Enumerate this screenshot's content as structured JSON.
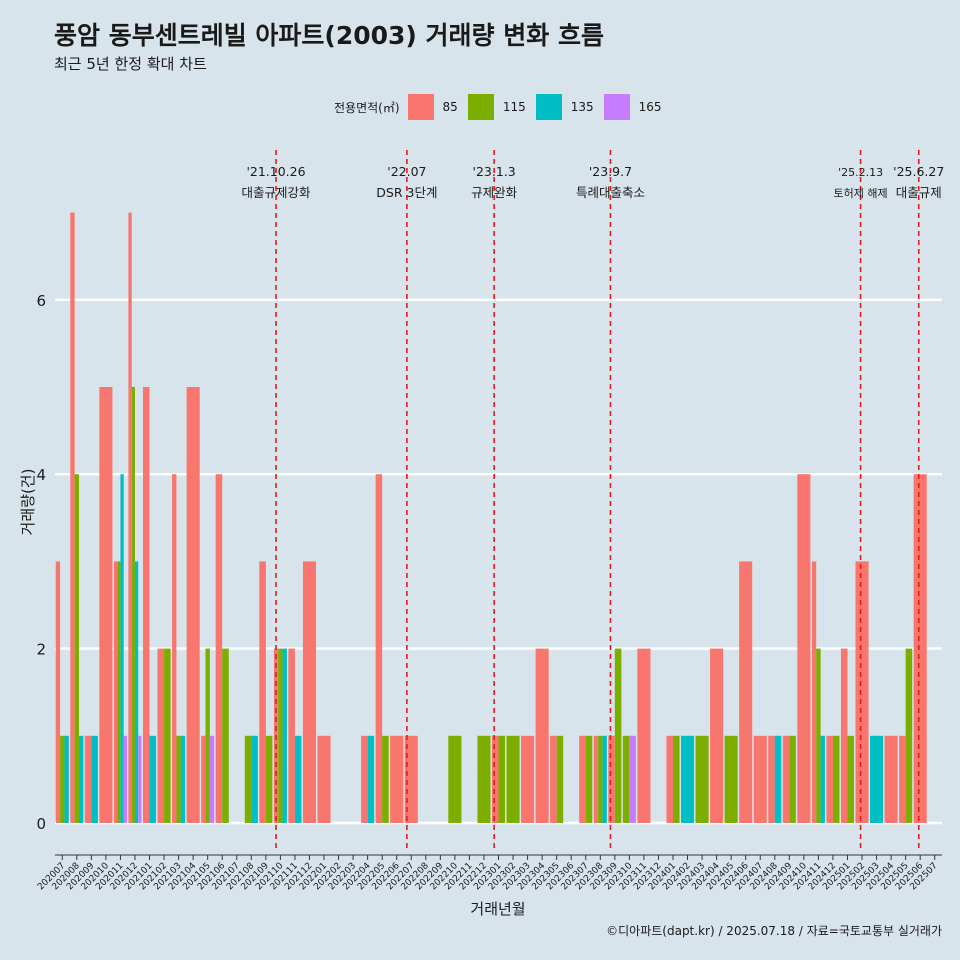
{
  "title": "풍암 동부센트레빌 아파트(2003) 거래량 변화 흐름",
  "subtitle": "최근 5년 한정 확대 차트",
  "caption": "©디아파트(dapt.kr) / 2025.07.18 / 자료=국토교통부 실거래가",
  "colors": {
    "85": "#f8766d",
    "115": "#7cae00",
    "135": "#00bfc4",
    "165": "#c77cff",
    "background": "#d8e4eb",
    "event_line": "#e8191b"
  },
  "chart_data": {
    "type": "bar",
    "xlabel": "거래년월",
    "ylabel": "거래량(건)",
    "ylim": [
      -0.3,
      7.3
    ],
    "yticks": [
      0,
      2,
      4,
      6
    ],
    "legend": {
      "title": "전용면적(㎡)",
      "position": "top"
    },
    "categories": [
      "202007",
      "202008",
      "202009",
      "202010",
      "202011",
      "202012",
      "202101",
      "202102",
      "202103",
      "202104",
      "202105",
      "202106",
      "202107",
      "202108",
      "202109",
      "202110",
      "202111",
      "202112",
      "202201",
      "202202",
      "202203",
      "202204",
      "202205",
      "202206",
      "202207",
      "202208",
      "202209",
      "202210",
      "202211",
      "202212",
      "202301",
      "202302",
      "202303",
      "202304",
      "202305",
      "202306",
      "202307",
      "202308",
      "202309",
      "202310",
      "202311",
      "202312",
      "202401",
      "202402",
      "202403",
      "202404",
      "202405",
      "202406",
      "202407",
      "202408",
      "202409",
      "202410",
      "202411",
      "202412",
      "202501",
      "202502",
      "202503",
      "202504",
      "202505",
      "202506",
      "202507"
    ],
    "series": [
      {
        "name": "85",
        "values": [
          3,
          7,
          1,
          5,
          3,
          7,
          5,
          2,
          4,
          5,
          1,
          4,
          0,
          0,
          3,
          2,
          2,
          3,
          1,
          0,
          0,
          1,
          4,
          1,
          1,
          0,
          0,
          0,
          0,
          0,
          1,
          0,
          1,
          2,
          1,
          0,
          1,
          1,
          1,
          0,
          2,
          0,
          1,
          0,
          0,
          2,
          0,
          3,
          1,
          1,
          1,
          4,
          3,
          1,
          2,
          3,
          0,
          1,
          1,
          4,
          0
        ]
      },
      {
        "name": "115",
        "values": [
          1,
          4,
          0,
          0,
          3,
          5,
          0,
          2,
          1,
          0,
          2,
          2,
          0,
          1,
          1,
          2,
          0,
          0,
          0,
          0,
          0,
          0,
          1,
          0,
          0,
          0,
          0,
          1,
          0,
          1,
          1,
          1,
          0,
          0,
          1,
          0,
          1,
          1,
          2,
          1,
          0,
          0,
          1,
          0,
          1,
          0,
          1,
          0,
          0,
          0,
          1,
          0,
          2,
          1,
          1,
          0,
          0,
          0,
          2,
          0,
          0
        ]
      },
      {
        "name": "135",
        "values": [
          1,
          1,
          1,
          0,
          4,
          3,
          1,
          0,
          1,
          0,
          0,
          0,
          0,
          1,
          0,
          2,
          1,
          0,
          0,
          0,
          0,
          1,
          0,
          0,
          0,
          0,
          0,
          0,
          0,
          0,
          0,
          0,
          0,
          0,
          0,
          0,
          0,
          1,
          0,
          0,
          0,
          0,
          0,
          1,
          0,
          0,
          0,
          0,
          0,
          1,
          0,
          0,
          1,
          0,
          0,
          0,
          1,
          0,
          0,
          0,
          0
        ]
      },
      {
        "name": "165",
        "values": [
          0,
          0,
          0,
          0,
          1,
          1,
          0,
          0,
          0,
          0,
          1,
          0,
          0,
          0,
          0,
          0,
          0,
          0,
          0,
          0,
          0,
          0,
          0,
          0,
          0,
          0,
          0,
          0,
          0,
          0,
          0,
          0,
          0,
          0,
          0,
          0,
          0,
          0,
          0,
          1,
          0,
          0,
          0,
          0,
          0,
          0,
          0,
          0,
          0,
          0,
          0,
          0,
          0,
          0,
          0,
          0,
          0,
          0,
          0,
          0,
          0
        ]
      }
    ],
    "events": [
      {
        "position": 15.2,
        "date": "'21.10.26",
        "label": "대출규제강화"
      },
      {
        "position": 24.2,
        "date": "'22.07",
        "label": "DSR 3단계"
      },
      {
        "position": 30.2,
        "date": "'23.1.3",
        "label": "규제완화"
      },
      {
        "position": 38.2,
        "date": "'23.9.7",
        "label": "특례대출축소"
      },
      {
        "position": 55.4,
        "date": "'25.2.13",
        "label": "토허제 해제"
      },
      {
        "position": 59.4,
        "date": "'25.6.27",
        "label": "대출규제"
      }
    ]
  }
}
